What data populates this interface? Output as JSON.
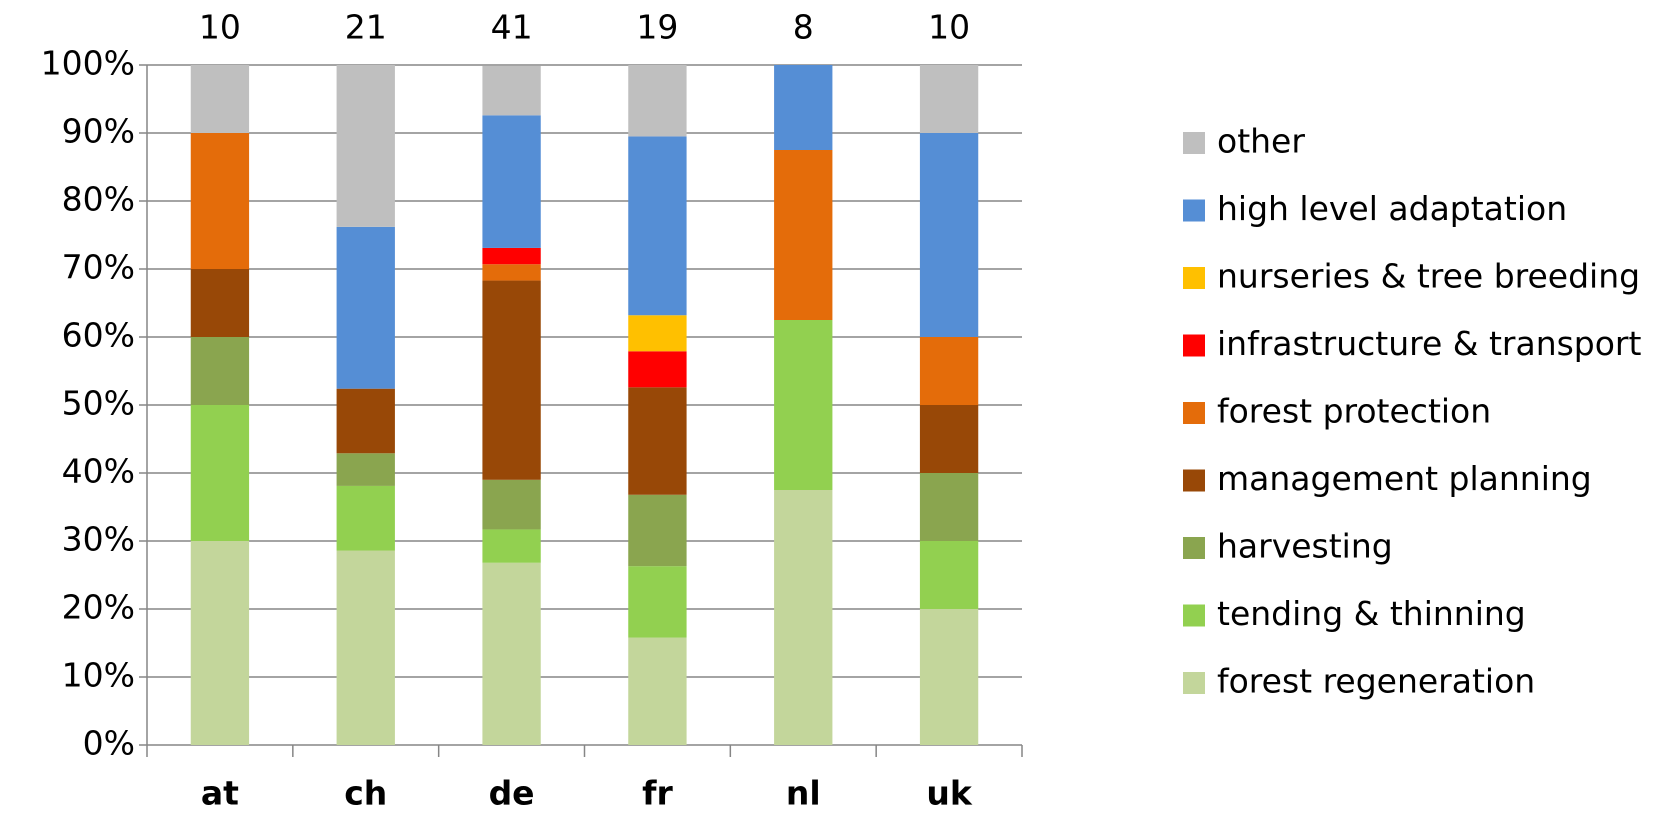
{
  "chart_data": {
    "type": "stacked_bar",
    "categories": [
      "at",
      "ch",
      "de",
      "fr",
      "nl",
      "uk"
    ],
    "top_labels": [
      10,
      21,
      41,
      19,
      8,
      10
    ],
    "series": [
      {
        "name": "forest regeneration",
        "color": "#c3d69b",
        "values": [
          30,
          28.6,
          26.8,
          15.8,
          37.5,
          20
        ]
      },
      {
        "name": "tending & thinning",
        "color": "#92d050",
        "values": [
          20,
          9.5,
          4.9,
          10.5,
          25,
          10
        ]
      },
      {
        "name": "harvesting",
        "color": "#8aa54f",
        "values": [
          10,
          4.8,
          7.3,
          10.5,
          0,
          10
        ]
      },
      {
        "name": "management planning",
        "color": "#984807",
        "values": [
          10,
          9.5,
          29.3,
          15.8,
          0,
          10
        ]
      },
      {
        "name": "forest protection",
        "color": "#e46c0a",
        "values": [
          20,
          0,
          2.4,
          0,
          25,
          10
        ]
      },
      {
        "name": "infrastructure & transport",
        "color": "#ff0000",
        "values": [
          0,
          0,
          2.4,
          5.3,
          0,
          0
        ]
      },
      {
        "name": "nurseries & tree breeding",
        "color": "#ffc000",
        "values": [
          0,
          0,
          0,
          5.3,
          0,
          0
        ]
      },
      {
        "name": "high level adaptation",
        "color": "#558ed5",
        "values": [
          0,
          23.8,
          19.5,
          26.3,
          12.5,
          30
        ]
      },
      {
        "name": "other",
        "color": "#bfbfbf",
        "values": [
          10,
          23.8,
          7.3,
          10.5,
          0,
          10
        ]
      }
    ],
    "ylim": [
      0,
      100
    ],
    "yticks": [
      {
        "value": 0,
        "label": "0%"
      },
      {
        "value": 10,
        "label": "10%"
      },
      {
        "value": 20,
        "label": "20%"
      },
      {
        "value": 30,
        "label": "30%"
      },
      {
        "value": 40,
        "label": "40%"
      },
      {
        "value": 50,
        "label": "50%"
      },
      {
        "value": 60,
        "label": "60%"
      },
      {
        "value": 70,
        "label": "70%"
      },
      {
        "value": 80,
        "label": "80%"
      },
      {
        "value": 90,
        "label": "90%"
      },
      {
        "value": 100,
        "label": "100%"
      }
    ],
    "grid": true,
    "legend": "right"
  }
}
